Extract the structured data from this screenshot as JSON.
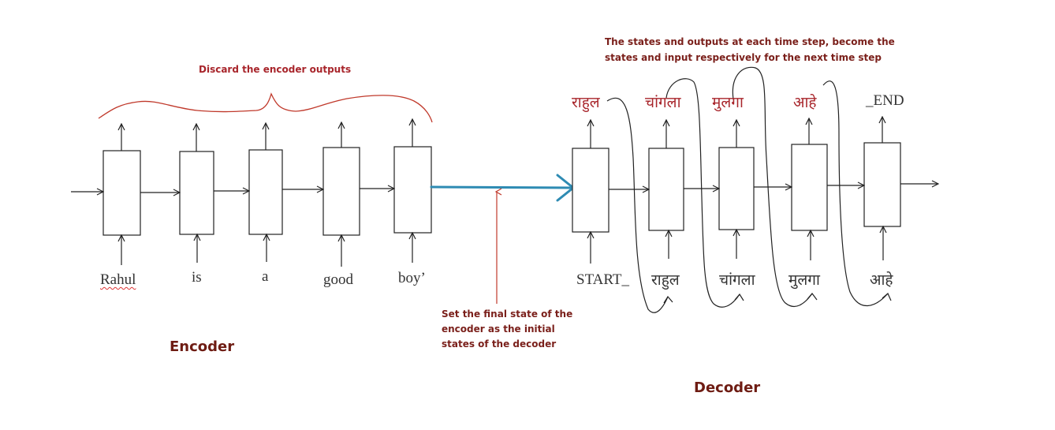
{
  "annotations": {
    "discard_outputs": "Discard the encoder outputs",
    "decoder_states": [
      "The states and outputs at each time step, become the",
      "states and input respectively for  the next time step"
    ],
    "final_state": [
      "Set the final state of the",
      "encoder as the initial",
      "states of the decoder"
    ]
  },
  "titles": {
    "encoder": "Encoder",
    "decoder": "Decoder"
  },
  "encoder": {
    "inputs": [
      "Rahul",
      "is",
      "a",
      "good",
      "boy’"
    ]
  },
  "decoder": {
    "inputs": [
      "START_",
      "राहुल",
      "चांगला",
      "मुलगा",
      "आहे"
    ],
    "outputs": [
      "राहुल",
      "चांगला",
      "मुलगा",
      "आहे",
      "_END"
    ]
  },
  "colors": {
    "annotation": "#a8252b",
    "state_arrow": "#2e8bb3",
    "brace": "#c0392b",
    "ink": "#222222"
  }
}
